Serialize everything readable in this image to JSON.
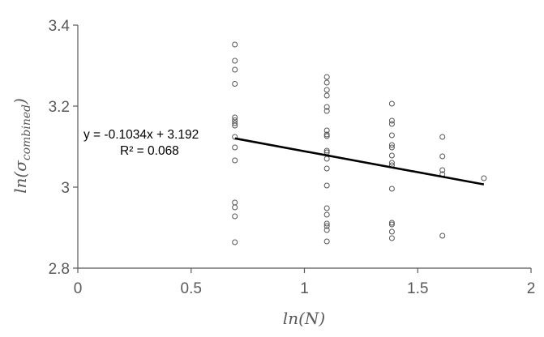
{
  "chart_data": {
    "type": "scatter",
    "xlim": [
      0,
      2
    ],
    "ylim": [
      2.8,
      3.4
    ],
    "x_ticks": [
      "0",
      "0.5",
      "1",
      "1.5",
      "2"
    ],
    "y_ticks": [
      "2.8",
      "3",
      "3.2",
      "3.4"
    ],
    "x_tick_values": [
      0,
      0.5,
      1,
      1.5,
      2
    ],
    "y_tick_values": [
      2.8,
      3.0,
      3.2,
      3.4
    ],
    "xlabel": "ln(N)",
    "ylabel_base": "ln(σ",
    "ylabel_sub": "combined",
    "ylabel_close": ")",
    "grid": false,
    "marker": "open-circle",
    "series": [
      {
        "points": [
          [
            0.693,
            3.352
          ],
          [
            0.693,
            3.312
          ],
          [
            0.693,
            3.29
          ],
          [
            0.693,
            3.255
          ],
          [
            0.693,
            3.172
          ],
          [
            0.693,
            3.165
          ],
          [
            0.693,
            3.158
          ],
          [
            0.693,
            3.152
          ],
          [
            0.693,
            3.124
          ],
          [
            0.693,
            3.098
          ],
          [
            0.693,
            3.066
          ],
          [
            0.693,
            2.962
          ],
          [
            0.693,
            2.95
          ],
          [
            0.693,
            2.928
          ],
          [
            0.693,
            2.864
          ],
          [
            1.099,
            3.272
          ],
          [
            1.099,
            3.258
          ],
          [
            1.099,
            3.24
          ],
          [
            1.099,
            3.226
          ],
          [
            1.099,
            3.198
          ],
          [
            1.099,
            3.188
          ],
          [
            1.099,
            3.14
          ],
          [
            1.099,
            3.13
          ],
          [
            1.099,
            3.126
          ],
          [
            1.099,
            3.09
          ],
          [
            1.099,
            3.086
          ],
          [
            1.099,
            3.07
          ],
          [
            1.099,
            3.046
          ],
          [
            1.099,
            3.004
          ],
          [
            1.099,
            2.948
          ],
          [
            1.099,
            2.932
          ],
          [
            1.099,
            2.91
          ],
          [
            1.099,
            2.904
          ],
          [
            1.099,
            2.894
          ],
          [
            1.099,
            2.866
          ],
          [
            1.386,
            3.206
          ],
          [
            1.386,
            3.164
          ],
          [
            1.386,
            3.156
          ],
          [
            1.386,
            3.128
          ],
          [
            1.386,
            3.104
          ],
          [
            1.386,
            3.098
          ],
          [
            1.386,
            3.078
          ],
          [
            1.386,
            3.06
          ],
          [
            1.386,
            3.054
          ],
          [
            1.386,
            2.996
          ],
          [
            1.386,
            2.912
          ],
          [
            1.386,
            2.908
          ],
          [
            1.386,
            2.89
          ],
          [
            1.386,
            2.874
          ],
          [
            1.609,
            3.124
          ],
          [
            1.609,
            3.076
          ],
          [
            1.609,
            3.042
          ],
          [
            1.609,
            3.032
          ],
          [
            1.609,
            2.88
          ],
          [
            1.792,
            3.022
          ]
        ]
      }
    ],
    "trendline": {
      "slope": -0.1034,
      "intercept": 3.192,
      "x_range": [
        0.693,
        1.792
      ],
      "equation_text": "y = -0.1034x + 3.192",
      "r2_text": "R² = 0.068"
    },
    "colors": {
      "marker": "#555555",
      "trendline": "#000000",
      "axis": "#595959"
    }
  }
}
